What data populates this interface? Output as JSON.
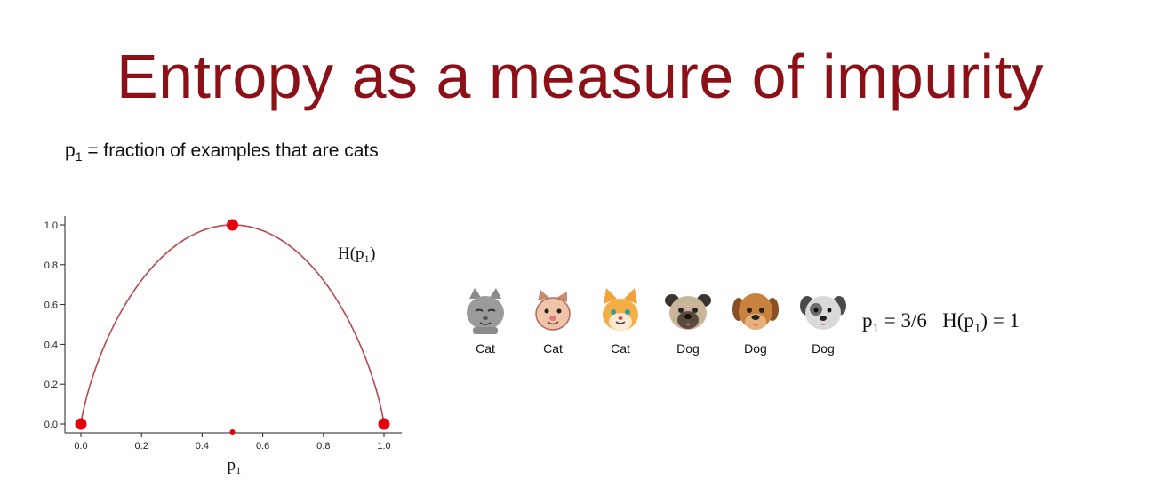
{
  "slide": {
    "title": "Entropy as a measure of impurity",
    "definition": {
      "var": "p",
      "sub": "1",
      "text": "= fraction of examples that are cats"
    }
  },
  "chart_data": {
    "type": "line",
    "title": "",
    "xlabel": "p₁",
    "ylabel": "",
    "curve_label": "H(p₁)",
    "xlim": [
      0.0,
      1.0
    ],
    "ylim": [
      0.0,
      1.0
    ],
    "x_ticks": [
      "0.0",
      "0.2",
      "0.4",
      "0.6",
      "0.8",
      "1.0"
    ],
    "y_ticks": [
      "0.0",
      "0.2",
      "0.4",
      "0.6",
      "0.8",
      "1.0"
    ],
    "series": [
      {
        "x": [
          0.0,
          0.05,
          0.1,
          0.15,
          0.2,
          0.25,
          0.3,
          0.35,
          0.4,
          0.45,
          0.5,
          0.55,
          0.6,
          0.65,
          0.7,
          0.75,
          0.8,
          0.85,
          0.9,
          0.95,
          1.0
        ],
        "y": [
          0.0,
          0.286,
          0.469,
          0.61,
          0.722,
          0.811,
          0.881,
          0.934,
          0.971,
          0.993,
          1.0,
          0.993,
          0.971,
          0.934,
          0.881,
          0.811,
          0.722,
          0.61,
          0.469,
          0.286,
          0.0
        ]
      }
    ],
    "highlight_points": [
      {
        "x": 0.0,
        "y": 0.0
      },
      {
        "x": 0.5,
        "y": 1.0
      },
      {
        "x": 1.0,
        "y": 0.0
      },
      {
        "x": 0.5,
        "y": -0.04
      }
    ],
    "grid": false,
    "colors": {
      "curve": "#b5474f",
      "marker": "#e3000b"
    }
  },
  "animals": [
    {
      "label": "Cat",
      "icon": "gray-cat-icon"
    },
    {
      "label": "Cat",
      "icon": "pink-cat-icon"
    },
    {
      "label": "Cat",
      "icon": "orange-cat-icon"
    },
    {
      "label": "Dog",
      "icon": "pug-dog-icon"
    },
    {
      "label": "Dog",
      "icon": "brown-dog-icon"
    },
    {
      "label": "Dog",
      "icon": "gray-dog-icon"
    }
  ],
  "equation": {
    "p_var": "p",
    "p_sub": "1",
    "p_value": " = 3/6",
    "h_prefix": "H(p",
    "h_sub": "1",
    "h_suffix": ") = 1"
  },
  "colors": {
    "title": "#8b1018",
    "background": "#ffffff"
  }
}
